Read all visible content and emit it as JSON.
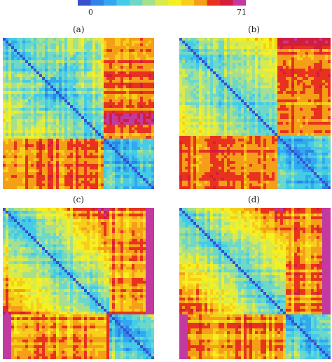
{
  "colorbar": {
    "min_label": "0",
    "max_label": "71",
    "min": 0,
    "max": 71,
    "colors": [
      "#3a4fd0",
      "#2f82e6",
      "#32a8f0",
      "#44cbe8",
      "#6dd8c8",
      "#a6e08e",
      "#d9ea4c",
      "#f4f021",
      "#f7cf1a",
      "#f59f18",
      "#e8321f",
      "#d21e3c",
      "#c23aa0"
    ]
  },
  "chart_data": [
    {
      "type": "heatmap",
      "label": "(a)",
      "matrix_size": 74,
      "block_split": 0.66,
      "value_range": [
        0,
        71
      ],
      "blocks": {
        "diag_block_1": "low (blue)",
        "diag_block_2": "low (blue)",
        "off_diagonal": "high (yellow-red)"
      }
    },
    {
      "type": "heatmap",
      "label": "(b)",
      "matrix_size": 74,
      "block_split": 0.65,
      "value_range": [
        0,
        71
      ],
      "blocks": {
        "diag_block_1": "low (blue)",
        "diag_block_2": "low (blue)",
        "off_diagonal": "high (yellow-red)"
      }
    },
    {
      "type": "heatmap",
      "label": "(c)",
      "matrix_size": 74,
      "block_split": 0.7,
      "value_range": [
        0,
        71
      ],
      "blocks": {
        "diag_block_1": "low (blue)",
        "diag_block_2": "low (blue)",
        "off_diagonal": "high (yellow-red)"
      }
    },
    {
      "type": "heatmap",
      "label": "(d)",
      "matrix_size": 74,
      "block_split": 0.7,
      "value_range": [
        0,
        71
      ],
      "blocks": {
        "diag_block_1": "low (blue)",
        "diag_block_2": "low (blue)",
        "off_diagonal": "high (yellow-red)"
      }
    }
  ]
}
